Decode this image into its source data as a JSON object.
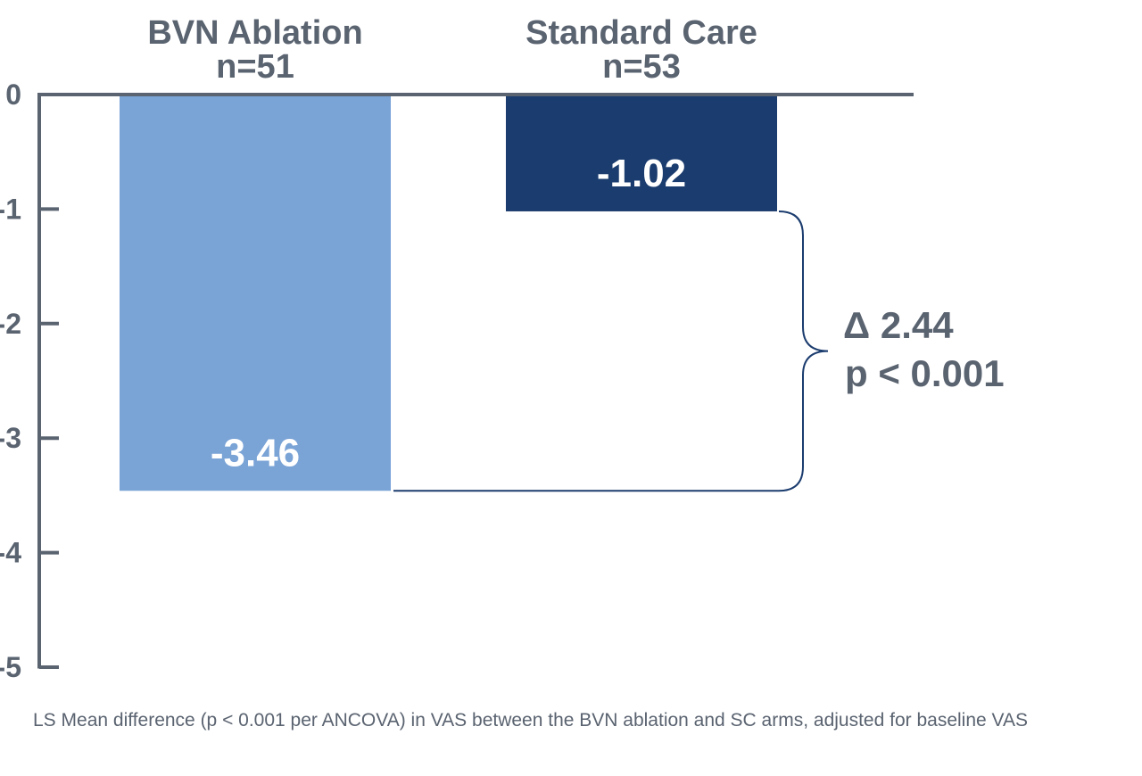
{
  "chart_data": {
    "type": "bar",
    "categories": [
      "BVN Ablation",
      "Standard Care"
    ],
    "category_sublabels": [
      "n=51",
      "n=53"
    ],
    "values": [
      -3.46,
      -1.02
    ],
    "value_labels": [
      "-3.46",
      "-1.02"
    ],
    "ylim": [
      -5,
      0
    ],
    "yticks": [
      0,
      -1,
      -2,
      -3,
      -4,
      -5
    ],
    "ytick_labels": [
      "0",
      "-1",
      "-2",
      "-3",
      "-4",
      "-5"
    ],
    "colors": [
      "#7aa3d6",
      "#1b3c6e"
    ],
    "axis_color": "#5a6370",
    "annotation": {
      "delta": "Δ 2.44",
      "p": "p < 0.001"
    },
    "footnote": "LS Mean difference (p < 0.001 per ANCOVA) in VAS between the BVN ablation and SC arms, adjusted for baseline VAS"
  }
}
